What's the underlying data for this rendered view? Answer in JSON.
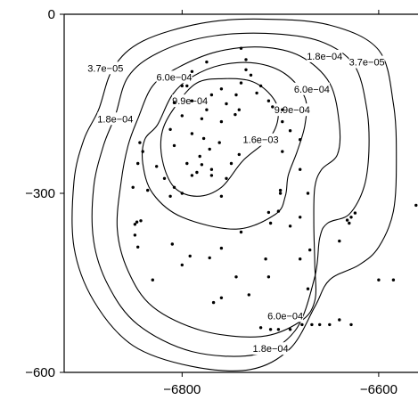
{
  "chart_data": {
    "type": "scatter",
    "title": "",
    "xlabel": "",
    "ylabel": "",
    "xlim": [
      -6920,
      -6560
    ],
    "ylim": [
      -600,
      0
    ],
    "x_ticks": [
      -6800,
      -6600
    ],
    "x_tick_labels": [
      "−6800",
      "−6600"
    ],
    "y_ticks": [
      0,
      -300,
      -600
    ],
    "y_tick_labels": [
      "0",
      "−300",
      "−600"
    ],
    "grid": false,
    "contour_levels": [
      {
        "level": "3.7e−05",
        "points": [
          [
            -6885,
            -160
          ],
          [
            -6870,
            -90
          ],
          [
            -6840,
            -45
          ],
          [
            -6780,
            -15
          ],
          [
            -6720,
            -8
          ],
          [
            -6650,
            -18
          ],
          [
            -6600,
            -60
          ],
          [
            -6585,
            -150
          ],
          [
            -6582,
            -240
          ],
          [
            -6585,
            -330
          ],
          [
            -6600,
            -390
          ],
          [
            -6620,
            -420
          ],
          [
            -6650,
            -445
          ],
          [
            -6665,
            -490
          ],
          [
            -6690,
            -560
          ],
          [
            -6730,
            -595
          ],
          [
            -6790,
            -590
          ],
          [
            -6850,
            -555
          ],
          [
            -6890,
            -480
          ],
          [
            -6910,
            -390
          ],
          [
            -6910,
            -280
          ],
          [
            -6900,
            -210
          ]
        ]
      },
      {
        "level": "1.8e−04",
        "points": [
          [
            -6868,
            -170
          ],
          [
            -6855,
            -105
          ],
          [
            -6825,
            -65
          ],
          [
            -6775,
            -38
          ],
          [
            -6715,
            -32
          ],
          [
            -6660,
            -45
          ],
          [
            -6625,
            -85
          ],
          [
            -6612,
            -160
          ],
          [
            -6610,
            -230
          ],
          [
            -6615,
            -290
          ],
          [
            -6630,
            -335
          ],
          [
            -6652,
            -350
          ],
          [
            -6660,
            -375
          ],
          [
            -6665,
            -440
          ],
          [
            -6685,
            -530
          ],
          [
            -6725,
            -570
          ],
          [
            -6790,
            -565
          ],
          [
            -6845,
            -520
          ],
          [
            -6875,
            -455
          ],
          [
            -6890,
            -380
          ],
          [
            -6890,
            -290
          ],
          [
            -6880,
            -220
          ]
        ]
      },
      {
        "level": "6.0e−04",
        "points": [
          [
            -6845,
            -175
          ],
          [
            -6830,
            -120
          ],
          [
            -6805,
            -90
          ],
          [
            -6765,
            -63
          ],
          [
            -6720,
            -55
          ],
          [
            -6680,
            -70
          ],
          [
            -6650,
            -115
          ],
          [
            -6640,
            -185
          ],
          [
            -6642,
            -235
          ],
          [
            -6658,
            -260
          ],
          [
            -6665,
            -290
          ],
          [
            -6666,
            -350
          ],
          [
            -6665,
            -420
          ],
          [
            -6665,
            -480
          ],
          [
            -6680,
            -515
          ],
          [
            -6720,
            -540
          ],
          [
            -6780,
            -530
          ],
          [
            -6830,
            -490
          ],
          [
            -6855,
            -430
          ],
          [
            -6866,
            -360
          ],
          [
            -6862,
            -280
          ],
          [
            -6855,
            -220
          ]
        ]
      },
      {
        "level": "9.9e−04",
        "points": [
          [
            -6825,
            -185
          ],
          [
            -6810,
            -135
          ],
          [
            -6790,
            -105
          ],
          [
            -6760,
            -85
          ],
          [
            -6725,
            -82
          ],
          [
            -6695,
            -100
          ],
          [
            -6675,
            -140
          ],
          [
            -6675,
            -185
          ],
          [
            -6683,
            -230
          ],
          [
            -6692,
            -270
          ],
          [
            -6695,
            -305
          ],
          [
            -6705,
            -335
          ],
          [
            -6745,
            -360
          ],
          [
            -6800,
            -340
          ],
          [
            -6830,
            -300
          ],
          [
            -6840,
            -250
          ],
          [
            -6838,
            -210
          ]
        ]
      },
      {
        "level": "1.6e−03",
        "points": [
          [
            -6805,
            -150
          ],
          [
            -6785,
            -115
          ],
          [
            -6760,
            -108
          ],
          [
            -6730,
            -112
          ],
          [
            -6710,
            -135
          ],
          [
            -6702,
            -165
          ],
          [
            -6710,
            -205
          ],
          [
            -6738,
            -245
          ],
          [
            -6760,
            -290
          ],
          [
            -6785,
            -305
          ],
          [
            -6808,
            -290
          ],
          [
            -6820,
            -245
          ],
          [
            -6820,
            -195
          ]
        ]
      }
    ],
    "contour_labels": [
      {
        "text": "3.7e−05",
        "x": -6878,
        "y": -90
      },
      {
        "text": "1.8e−04",
        "x": -6868,
        "y": -175
      },
      {
        "text": "6.0e−04",
        "x": -6808,
        "y": -105
      },
      {
        "text": "9.9e−04",
        "x": -6792,
        "y": -145
      },
      {
        "text": "1.6e−03",
        "x": -6720,
        "y": -210
      },
      {
        "text": "9.9e−04",
        "x": -6688,
        "y": -160
      },
      {
        "text": "6.0e−04",
        "x": -6668,
        "y": -125
      },
      {
        "text": "1.8e−04",
        "x": -6655,
        "y": -70
      },
      {
        "text": "3.7e−05",
        "x": -6612,
        "y": -80
      },
      {
        "text": "6.0e−04",
        "x": -6695,
        "y": -505
      },
      {
        "text": "1.8e−04",
        "x": -6710,
        "y": -560
      }
    ],
    "points": [
      [
        -6740,
        -57
      ],
      [
        -6735,
        -76
      ],
      [
        -6735,
        -93
      ],
      [
        -6730,
        -102
      ],
      [
        -6740,
        -115
      ],
      [
        -6760,
        -125
      ],
      [
        -6770,
        -135
      ],
      [
        -6745,
        -135
      ],
      [
        -6755,
        -150
      ],
      [
        -6790,
        -145
      ],
      [
        -6775,
        -160
      ],
      [
        -6800,
        -170
      ],
      [
        -6780,
        -175
      ],
      [
        -6760,
        -180
      ],
      [
        -6812,
        -193
      ],
      [
        -6790,
        -200
      ],
      [
        -6778,
        -208
      ],
      [
        -6762,
        -215
      ],
      [
        -6772,
        -226
      ],
      [
        -6808,
        -220
      ],
      [
        -6742,
        -235
      ],
      [
        -6782,
        -238
      ],
      [
        -6795,
        -250
      ],
      [
        -6780,
        -252
      ],
      [
        -6770,
        -260
      ],
      [
        -6785,
        -265
      ],
      [
        -6790,
        -270
      ],
      [
        -6755,
        -275
      ],
      [
        -6742,
        -160
      ],
      [
        -6746,
        -168
      ],
      [
        -6720,
        -120
      ],
      [
        -6724,
        -132
      ],
      [
        -6712,
        -145
      ],
      [
        -6708,
        -155
      ],
      [
        -6698,
        -160
      ],
      [
        -6698,
        -180
      ],
      [
        -6690,
        -195
      ],
      [
        -6680,
        -210
      ],
      [
        -6790,
        -96
      ],
      [
        -6800,
        -120
      ],
      [
        -6808,
        -148
      ],
      [
        -6843,
        -215
      ],
      [
        -6840,
        -230
      ],
      [
        -6845,
        -250
      ],
      [
        -6826,
        -255
      ],
      [
        -6835,
        -295
      ],
      [
        -6818,
        -275
      ],
      [
        -6808,
        -290
      ],
      [
        -6800,
        -300
      ],
      [
        -6812,
        -305
      ],
      [
        -6850,
        -290
      ],
      [
        -6848,
        -352
      ],
      [
        -6846,
        -348
      ],
      [
        -6842,
        -346
      ],
      [
        -6848,
        -370
      ],
      [
        -6845,
        -390
      ],
      [
        -6810,
        -385
      ],
      [
        -6792,
        -405
      ],
      [
        -6772,
        -408
      ],
      [
        -6760,
        -392
      ],
      [
        -6740,
        -365
      ],
      [
        -6745,
        -440
      ],
      [
        -6712,
        -332
      ],
      [
        -6710,
        -350
      ],
      [
        -6715,
        -410
      ],
      [
        -6800,
        -420
      ],
      [
        -6830,
        -445
      ],
      [
        -6760,
        -475
      ],
      [
        -6768,
        -483
      ],
      [
        -6712,
        -440
      ],
      [
        -6732,
        -470
      ],
      [
        -6720,
        -525
      ],
      [
        -6710,
        -528
      ],
      [
        -6702,
        -528
      ],
      [
        -6690,
        -528
      ],
      [
        -6678,
        -520
      ],
      [
        -6668,
        -520
      ],
      [
        -6660,
        -520
      ],
      [
        -6650,
        -520
      ],
      [
        -6640,
        -512
      ],
      [
        -6628,
        -520
      ],
      [
        -6672,
        -460
      ],
      [
        -6670,
        -395
      ],
      [
        -6640,
        -380
      ],
      [
        -6632,
        -345
      ],
      [
        -6628,
        -340
      ],
      [
        -6624,
        -333
      ],
      [
        -6630,
        -350
      ],
      [
        -6600,
        -445
      ],
      [
        -6585,
        -445
      ],
      [
        -6562,
        -320
      ],
      [
        -6680,
        -340
      ],
      [
        -6690,
        -355
      ],
      [
        -6680,
        -410
      ],
      [
        -6672,
        -300
      ],
      [
        -6700,
        -300
      ],
      [
        -6680,
        -260
      ],
      [
        -6698,
        -230
      ],
      [
        -6700,
        -295
      ],
      [
        -6702,
        -330
      ],
      [
        -6750,
        -250
      ],
      [
        -6770,
        -270
      ],
      [
        -6760,
        -305
      ],
      [
        -6795,
        -120
      ],
      [
        -6775,
        -80
      ]
    ]
  }
}
